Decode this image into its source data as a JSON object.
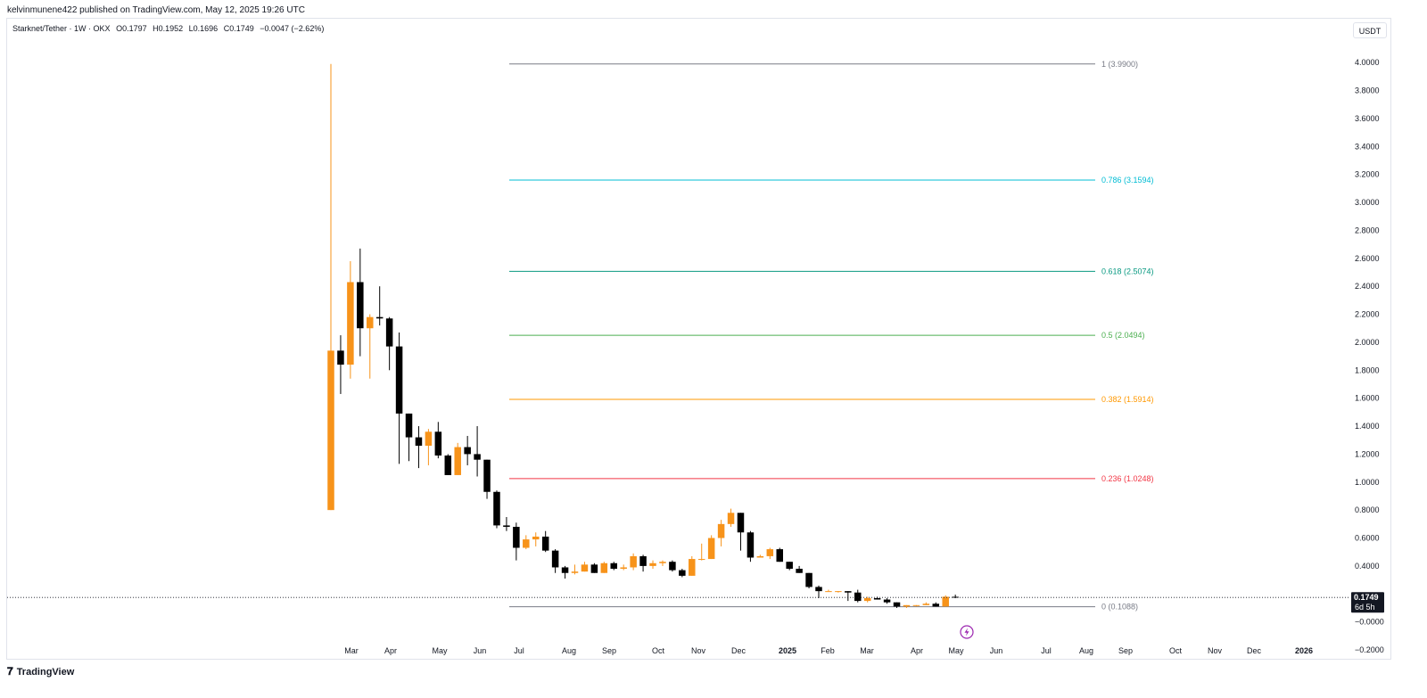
{
  "header": {
    "published": "kelvinmunene422 published on TradingView.com, May 12, 2025 19:26 UTC"
  },
  "legend": {
    "symbol": "Starknet/Tether · 1W · OKX",
    "open": "O0.1797",
    "high": "H0.1952",
    "low": "L0.1696",
    "close": "C0.1749",
    "change": "−0.0047 (−2.62%)"
  },
  "unit_button": "USDT",
  "footer": {
    "logo_text": "TradingView"
  },
  "colors": {
    "up": "#f7931a",
    "down": "#000000",
    "fib_1": "#787b86",
    "fib_0786": "#00bcd4",
    "fib_0618": "#089981",
    "fib_05": "#4caf50",
    "fib_0382": "#ff9800",
    "fib_0236": "#f23645",
    "fib_0": "#787b86"
  },
  "chart_data": {
    "type": "candlestick",
    "y_axis_labels": [
      "4.0000",
      "3.8000",
      "3.6000",
      "3.4000",
      "3.2000",
      "3.0000",
      "2.8000",
      "2.6000",
      "2.4000",
      "2.2000",
      "2.0000",
      "1.8000",
      "1.6000",
      "1.4000",
      "1.2000",
      "1.0000",
      "0.8000",
      "0.6000",
      "0.4000",
      "−0.0000",
      "−0.2000"
    ],
    "y_axis_values": [
      4.0,
      3.8,
      3.6,
      3.4,
      3.2,
      3.0,
      2.8,
      2.6,
      2.4,
      2.2,
      2.0,
      1.8,
      1.6,
      1.4,
      1.2,
      1.0,
      0.8,
      0.6,
      0.4,
      0.0,
      -0.2
    ],
    "ylim": [
      -0.27,
      4.32
    ],
    "x_axis_labels": [
      "Mar",
      "Apr",
      "May",
      "Jun",
      "Jul",
      "Aug",
      "Sep",
      "Oct",
      "Nov",
      "Dec",
      "2025",
      "Feb",
      "Mar",
      "Apr",
      "May",
      "Jun",
      "Jul",
      "Aug",
      "Sep",
      "Oct",
      "Nov",
      "Dec",
      "2026"
    ],
    "last_price": {
      "value": 0.1749,
      "label": "0.1749",
      "countdown": "6d 5h"
    },
    "fib_levels": [
      {
        "ratio": 1,
        "price": 3.99,
        "label": "1 (3.9900)",
        "color": "#787b86"
      },
      {
        "ratio": 0.786,
        "price": 3.1594,
        "label": "0.786 (3.1594)",
        "color": "#00bcd4"
      },
      {
        "ratio": 0.618,
        "price": 2.5074,
        "label": "0.618 (2.5074)",
        "color": "#089981"
      },
      {
        "ratio": 0.5,
        "price": 2.0494,
        "label": "0.5 (2.0494)",
        "color": "#4caf50"
      },
      {
        "ratio": 0.382,
        "price": 1.5914,
        "label": "0.382 (1.5914)",
        "color": "#ff9800"
      },
      {
        "ratio": 0.236,
        "price": 1.0248,
        "label": "0.236 (1.0248)",
        "color": "#f23645"
      },
      {
        "ratio": 0,
        "price": 0.1088,
        "label": "0 (0.1088)",
        "color": "#787b86"
      }
    ],
    "candles": [
      {
        "o": 0.8,
        "h": 3.99,
        "l": 0.8,
        "c": 1.94
      },
      {
        "o": 1.94,
        "h": 2.05,
        "l": 1.63,
        "c": 1.84
      },
      {
        "o": 1.84,
        "h": 2.58,
        "l": 1.74,
        "c": 2.43
      },
      {
        "o": 2.43,
        "h": 2.67,
        "l": 1.9,
        "c": 2.1
      },
      {
        "o": 2.1,
        "h": 2.2,
        "l": 1.74,
        "c": 2.18
      },
      {
        "o": 2.18,
        "h": 2.4,
        "l": 2.12,
        "c": 2.17
      },
      {
        "o": 2.17,
        "h": 2.18,
        "l": 1.8,
        "c": 1.97
      },
      {
        "o": 1.97,
        "h": 2.07,
        "l": 1.13,
        "c": 1.49
      },
      {
        "o": 1.49,
        "h": 1.49,
        "l": 1.15,
        "c": 1.32
      },
      {
        "o": 1.32,
        "h": 1.4,
        "l": 1.1,
        "c": 1.26
      },
      {
        "o": 1.26,
        "h": 1.38,
        "l": 1.12,
        "c": 1.36
      },
      {
        "o": 1.36,
        "h": 1.43,
        "l": 1.17,
        "c": 1.19
      },
      {
        "o": 1.19,
        "h": 1.2,
        "l": 1.05,
        "c": 1.05
      },
      {
        "o": 1.05,
        "h": 1.28,
        "l": 1.05,
        "c": 1.25
      },
      {
        "o": 1.25,
        "h": 1.33,
        "l": 1.12,
        "c": 1.2
      },
      {
        "o": 1.2,
        "h": 1.4,
        "l": 1.04,
        "c": 1.16
      },
      {
        "o": 1.16,
        "h": 1.16,
        "l": 0.88,
        "c": 0.93
      },
      {
        "o": 0.93,
        "h": 0.94,
        "l": 0.67,
        "c": 0.69
      },
      {
        "o": 0.69,
        "h": 0.75,
        "l": 0.65,
        "c": 0.68
      },
      {
        "o": 0.68,
        "h": 0.71,
        "l": 0.44,
        "c": 0.53
      },
      {
        "o": 0.53,
        "h": 0.62,
        "l": 0.52,
        "c": 0.59
      },
      {
        "o": 0.59,
        "h": 0.64,
        "l": 0.54,
        "c": 0.61
      },
      {
        "o": 0.61,
        "h": 0.65,
        "l": 0.5,
        "c": 0.51
      },
      {
        "o": 0.51,
        "h": 0.52,
        "l": 0.35,
        "c": 0.39
      },
      {
        "o": 0.39,
        "h": 0.4,
        "l": 0.31,
        "c": 0.35
      },
      {
        "o": 0.35,
        "h": 0.41,
        "l": 0.34,
        "c": 0.36
      },
      {
        "o": 0.36,
        "h": 0.43,
        "l": 0.36,
        "c": 0.41
      },
      {
        "o": 0.41,
        "h": 0.42,
        "l": 0.35,
        "c": 0.35
      },
      {
        "o": 0.35,
        "h": 0.43,
        "l": 0.35,
        "c": 0.42
      },
      {
        "o": 0.42,
        "h": 0.43,
        "l": 0.37,
        "c": 0.38
      },
      {
        "o": 0.38,
        "h": 0.41,
        "l": 0.37,
        "c": 0.39
      },
      {
        "o": 0.39,
        "h": 0.49,
        "l": 0.37,
        "c": 0.47
      },
      {
        "o": 0.47,
        "h": 0.48,
        "l": 0.36,
        "c": 0.4
      },
      {
        "o": 0.4,
        "h": 0.44,
        "l": 0.38,
        "c": 0.42
      },
      {
        "o": 0.42,
        "h": 0.44,
        "l": 0.4,
        "c": 0.43
      },
      {
        "o": 0.43,
        "h": 0.44,
        "l": 0.36,
        "c": 0.37
      },
      {
        "o": 0.37,
        "h": 0.38,
        "l": 0.32,
        "c": 0.33
      },
      {
        "o": 0.33,
        "h": 0.47,
        "l": 0.33,
        "c": 0.45
      },
      {
        "o": 0.45,
        "h": 0.56,
        "l": 0.44,
        "c": 0.45
      },
      {
        "o": 0.45,
        "h": 0.62,
        "l": 0.45,
        "c": 0.6
      },
      {
        "o": 0.6,
        "h": 0.73,
        "l": 0.54,
        "c": 0.7
      },
      {
        "o": 0.7,
        "h": 0.81,
        "l": 0.68,
        "c": 0.78
      },
      {
        "o": 0.78,
        "h": 0.78,
        "l": 0.51,
        "c": 0.64
      },
      {
        "o": 0.64,
        "h": 0.65,
        "l": 0.43,
        "c": 0.46
      },
      {
        "o": 0.46,
        "h": 0.48,
        "l": 0.46,
        "c": 0.47
      },
      {
        "o": 0.47,
        "h": 0.53,
        "l": 0.45,
        "c": 0.52
      },
      {
        "o": 0.52,
        "h": 0.53,
        "l": 0.43,
        "c": 0.43
      },
      {
        "o": 0.43,
        "h": 0.43,
        "l": 0.37,
        "c": 0.38
      },
      {
        "o": 0.38,
        "h": 0.4,
        "l": 0.35,
        "c": 0.35
      },
      {
        "o": 0.35,
        "h": 0.35,
        "l": 0.24,
        "c": 0.25
      },
      {
        "o": 0.25,
        "h": 0.26,
        "l": 0.17,
        "c": 0.22
      },
      {
        "o": 0.22,
        "h": 0.23,
        "l": 0.22,
        "c": 0.22
      },
      {
        "o": 0.22,
        "h": 0.22,
        "l": 0.21,
        "c": 0.22
      },
      {
        "o": 0.22,
        "h": 0.22,
        "l": 0.15,
        "c": 0.21
      },
      {
        "o": 0.21,
        "h": 0.23,
        "l": 0.14,
        "c": 0.15
      },
      {
        "o": 0.15,
        "h": 0.18,
        "l": 0.14,
        "c": 0.17
      },
      {
        "o": 0.17,
        "h": 0.18,
        "l": 0.16,
        "c": 0.16
      },
      {
        "o": 0.16,
        "h": 0.17,
        "l": 0.13,
        "c": 0.14
      },
      {
        "o": 0.14,
        "h": 0.14,
        "l": 0.1,
        "c": 0.11
      },
      {
        "o": 0.11,
        "h": 0.12,
        "l": 0.1,
        "c": 0.12
      },
      {
        "o": 0.12,
        "h": 0.12,
        "l": 0.11,
        "c": 0.12
      },
      {
        "o": 0.12,
        "h": 0.14,
        "l": 0.12,
        "c": 0.13
      },
      {
        "o": 0.13,
        "h": 0.14,
        "l": 0.11,
        "c": 0.11
      },
      {
        "o": 0.11,
        "h": 0.19,
        "l": 0.11,
        "c": 0.18
      },
      {
        "o": 0.1797,
        "h": 0.1952,
        "l": 0.1696,
        "c": 0.1749
      }
    ]
  }
}
